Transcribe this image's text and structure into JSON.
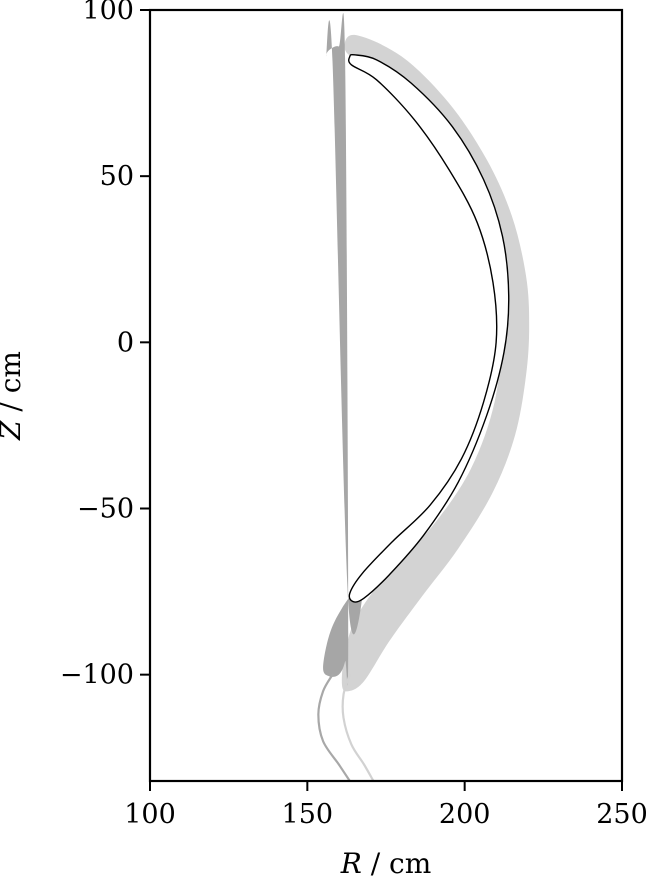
{
  "chart_data": {
    "type": "area",
    "title": "",
    "xlabel": {
      "symbol": "R",
      "unit": " / cm"
    },
    "ylabel": {
      "symbol": "Z",
      "unit": " / cm"
    },
    "xlim": [
      100,
      250
    ],
    "ylim": [
      -132,
      100
    ],
    "x_ticks": [
      {
        "value": 100,
        "label": "100"
      },
      {
        "value": 150,
        "label": "150"
      },
      {
        "value": 200,
        "label": "200"
      },
      {
        "value": 250,
        "label": "250"
      }
    ],
    "y_ticks": [
      {
        "value": 100,
        "label": "100"
      },
      {
        "value": 50,
        "label": "50"
      },
      {
        "value": 0,
        "label": "0"
      },
      {
        "value": -50,
        "label": "−50"
      },
      {
        "value": -100,
        "label": "−100"
      }
    ],
    "grid": false,
    "colors": {
      "light_band": "#d3d3d3",
      "dark_band": "#a6a6a6",
      "outline": "#000000",
      "legs_dark": "#a8a8a8",
      "legs_light": "#d2d2d2"
    },
    "series": [
      {
        "kind": "band",
        "shade": "light",
        "outer": [
          [
            165,
            92.5
          ],
          [
            180,
            86
          ],
          [
            195,
            72
          ],
          [
            207,
            55
          ],
          [
            215,
            38
          ],
          [
            219.5,
            20
          ],
          [
            220.5,
            5
          ],
          [
            219.5,
            -10
          ],
          [
            216,
            -28
          ],
          [
            209,
            -45
          ],
          [
            198,
            -62
          ],
          [
            186,
            -77
          ],
          [
            176,
            -90
          ],
          [
            168,
            -102
          ],
          [
            163,
            -105
          ]
        ],
        "inner": [
          [
            161,
            -103
          ],
          [
            162,
            -93
          ],
          [
            166,
            -82
          ],
          [
            176,
            -69
          ],
          [
            190,
            -55
          ],
          [
            202,
            -38
          ],
          [
            209.5,
            -18
          ],
          [
            211.5,
            2
          ],
          [
            210,
            20
          ],
          [
            204,
            38
          ],
          [
            194,
            56
          ],
          [
            180,
            72
          ],
          [
            168,
            83
          ],
          [
            162,
            88
          ]
        ]
      },
      {
        "kind": "band",
        "shade": "dark",
        "outer": [
          [
            162,
            85
          ],
          [
            160,
            89
          ],
          [
            157,
            88
          ],
          [
            156,
            86
          ],
          [
            158,
            84.5
          ]
        ],
        "inner": [
          [
            163,
            -78
          ],
          [
            168,
            -71
          ],
          [
            161,
            -80
          ],
          [
            157,
            -88
          ],
          [
            155,
            -98
          ],
          [
            157,
            -100.5
          ],
          [
            160,
            -100
          ],
          [
            162,
            -96
          ],
          [
            163,
            -88
          ]
        ]
      },
      {
        "kind": "outline",
        "points": [
          [
            164,
            83.5
          ],
          [
            163.5,
            86
          ],
          [
            165,
            86.5
          ],
          [
            172,
            85
          ],
          [
            183,
            78
          ],
          [
            196,
            65
          ],
          [
            206,
            49
          ],
          [
            212,
            32
          ],
          [
            214,
            14
          ],
          [
            212.5,
            -3
          ],
          [
            207,
            -22
          ],
          [
            198,
            -42
          ],
          [
            187,
            -58
          ],
          [
            176,
            -70
          ],
          [
            168,
            -77
          ],
          [
            164.5,
            -78
          ],
          [
            163.5,
            -75.5
          ],
          [
            167.5,
            -69.5
          ],
          [
            177,
            -60
          ],
          [
            189,
            -49
          ],
          [
            199,
            -35
          ],
          [
            206,
            -18
          ],
          [
            210,
            0
          ],
          [
            209,
            18
          ],
          [
            204,
            36
          ],
          [
            195,
            52
          ],
          [
            184,
            67
          ],
          [
            172,
            79
          ]
        ]
      },
      {
        "kind": "leg",
        "shade": "dark",
        "points": [
          [
            158,
            -100
          ],
          [
            155,
            -105
          ],
          [
            153.5,
            -112
          ],
          [
            155,
            -120
          ],
          [
            160,
            -127
          ],
          [
            163.5,
            -132
          ]
        ]
      },
      {
        "kind": "leg",
        "shade": "light",
        "points": [
          [
            163.5,
            -100
          ],
          [
            161.5,
            -106
          ],
          [
            161.5,
            -113
          ],
          [
            164,
            -121
          ],
          [
            168,
            -127
          ],
          [
            171,
            -132
          ]
        ]
      }
    ]
  }
}
